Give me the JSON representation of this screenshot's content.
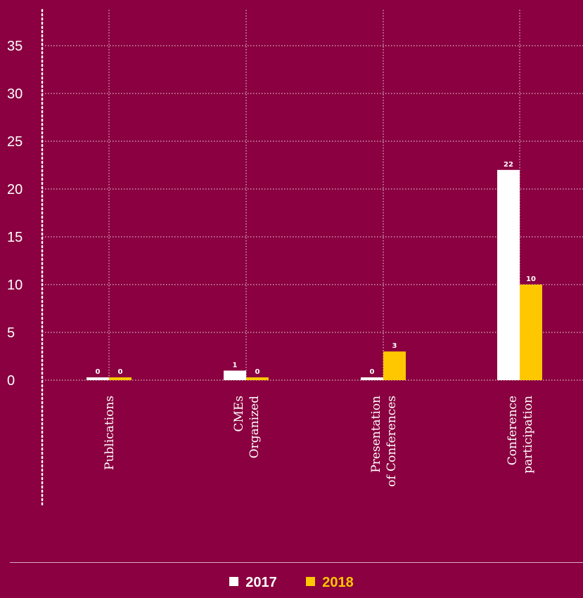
{
  "chart_data": {
    "type": "bar",
    "categories": [
      [
        "Publications"
      ],
      [
        "CMEs",
        "Organized"
      ],
      [
        "Presentation",
        "of Conferences"
      ],
      [
        "Conference",
        "participation"
      ]
    ],
    "series": [
      {
        "name": "2017",
        "values": [
          0,
          1,
          0,
          22
        ],
        "color": "#ffffff"
      },
      {
        "name": "2018",
        "values": [
          0,
          0,
          3,
          10
        ],
        "color": "#ffc700"
      }
    ],
    "ylim": [
      0,
      35
    ],
    "yticks": [
      0,
      5,
      10,
      15,
      20,
      25,
      30,
      35
    ],
    "grid": true,
    "legend_position": "bottom-center"
  },
  "colors": {
    "background": "#8a0040",
    "text": "#ffffff",
    "grid": "#ffffff",
    "series_2017": "#ffffff",
    "series_2018": "#ffc700"
  }
}
